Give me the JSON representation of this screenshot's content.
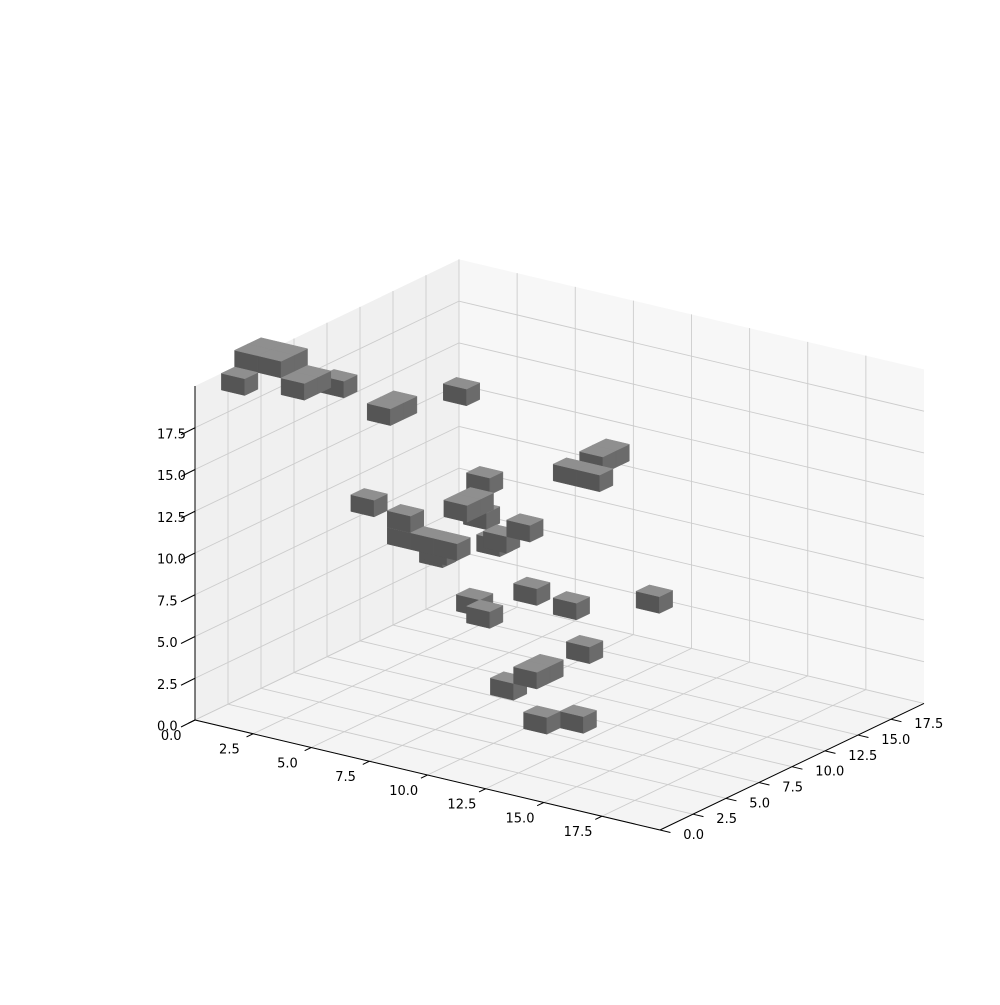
{
  "chart_data": {
    "type": "voxels",
    "title": "",
    "xlabel": "",
    "ylabel": "",
    "zlabel": "",
    "xlim": [
      0,
      20
    ],
    "ylim": [
      0,
      20
    ],
    "zlim": [
      0,
      20
    ],
    "grid": true,
    "colors": {
      "pane_side": "#f0f0f0",
      "pane_back": "#f7f7f7",
      "pane_floor": "#f4f4f4",
      "grid": "#cccccc",
      "voxel_top": "#8f8f8f",
      "voxel_front": "#555555",
      "voxel_side": "#6b6b6b"
    },
    "x_axis": {
      "tick_values": [
        0,
        2.5,
        5,
        7.5,
        10,
        12.5,
        15,
        17.5
      ],
      "tick_labels": [
        "0.0",
        "2.5",
        "5.0",
        "7.5",
        "10.0",
        "12.5",
        "15.0",
        "17.5"
      ]
    },
    "y_axis": {
      "tick_values": [
        0,
        2.5,
        5,
        7.5,
        10,
        12.5,
        15,
        17.5
      ],
      "tick_labels": [
        "0.0",
        "2.5",
        "5.0",
        "7.5",
        "10.0",
        "12.5",
        "15.0",
        "17.5"
      ]
    },
    "z_axis": {
      "tick_values": [
        0,
        2.5,
        5,
        7.5,
        10,
        12.5,
        15,
        17.5
      ],
      "tick_labels": [
        "0.0",
        "2.5",
        "5.0",
        "7.5",
        "10.0",
        "12.5",
        "15.0",
        "17.5"
      ]
    },
    "voxels": [
      [
        13,
        2,
        3
      ],
      [
        14,
        3,
        3
      ],
      [
        11,
        3,
        4
      ],
      [
        12,
        3,
        5
      ],
      [
        12,
        4,
        5
      ],
      [
        12,
        7,
        5
      ],
      [
        6,
        10,
        4
      ],
      [
        0,
        17,
        3
      ],
      [
        5,
        11,
        4
      ],
      [
        15,
        7,
        9
      ],
      [
        7,
        9,
        9
      ],
      [
        12,
        6,
        8
      ],
      [
        12,
        3,
        10
      ],
      [
        7,
        5,
        10
      ],
      [
        7,
        8,
        11
      ],
      [
        6,
        10,
        12
      ],
      [
        10,
        6,
        12
      ],
      [
        9,
        6,
        11
      ],
      [
        5,
        10,
        17
      ],
      [
        12,
        6,
        16
      ],
      [
        13,
        6,
        16
      ],
      [
        12,
        8,
        16
      ],
      [
        12,
        9,
        16
      ],
      [
        9,
        3,
        14
      ],
      [
        9,
        4,
        14
      ],
      [
        6,
        4,
        11
      ],
      [
        7,
        4,
        11
      ],
      [
        8,
        4,
        11
      ],
      [
        6,
        4,
        12
      ],
      [
        5,
        3,
        13
      ],
      [
        0,
        3,
        20
      ],
      [
        0,
        4,
        20
      ],
      [
        1,
        3,
        20
      ],
      [
        1,
        4,
        20
      ],
      [
        0,
        2,
        19
      ],
      [
        2,
        3,
        19
      ],
      [
        2,
        4,
        19
      ],
      [
        2,
        6,
        18
      ],
      [
        4,
        6,
        17
      ],
      [
        4,
        7,
        17
      ]
    ]
  }
}
